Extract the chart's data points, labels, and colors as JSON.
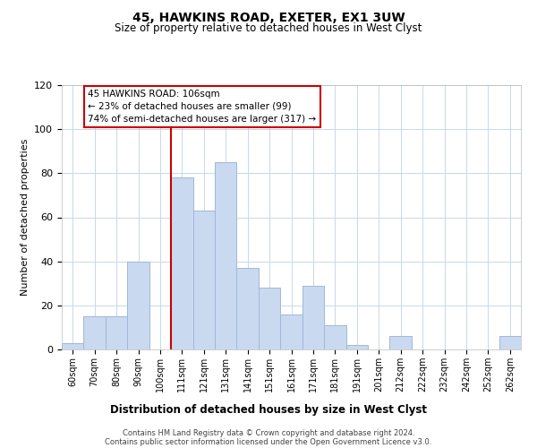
{
  "title": "45, HAWKINS ROAD, EXETER, EX1 3UW",
  "subtitle": "Size of property relative to detached houses in West Clyst",
  "xlabel": "Distribution of detached houses by size in West Clyst",
  "ylabel": "Number of detached properties",
  "bar_labels": [
    "60sqm",
    "70sqm",
    "80sqm",
    "90sqm",
    "100sqm",
    "111sqm",
    "121sqm",
    "131sqm",
    "141sqm",
    "151sqm",
    "161sqm",
    "171sqm",
    "181sqm",
    "191sqm",
    "201sqm",
    "212sqm",
    "222sqm",
    "232sqm",
    "242sqm",
    "252sqm",
    "262sqm"
  ],
  "bar_values": [
    3,
    15,
    15,
    40,
    0,
    78,
    63,
    85,
    37,
    28,
    16,
    29,
    11,
    2,
    0,
    6,
    0,
    0,
    0,
    0,
    6
  ],
  "bar_color": "#c9d9f0",
  "bar_edge_color": "#a0b8d8",
  "vline_color": "#cc0000",
  "annotation_lines": [
    "45 HAWKINS ROAD: 106sqm",
    "← 23% of detached houses are smaller (99)",
    "74% of semi-detached houses are larger (317) →"
  ],
  "annotation_box_edgecolor": "#cc0000",
  "ylim": [
    0,
    120
  ],
  "yticks": [
    0,
    20,
    40,
    60,
    80,
    100,
    120
  ],
  "footer_line1": "Contains HM Land Registry data © Crown copyright and database right 2024.",
  "footer_line2": "Contains public sector information licensed under the Open Government Licence v3.0.",
  "background_color": "#ffffff",
  "grid_color": "#c8d8e8"
}
